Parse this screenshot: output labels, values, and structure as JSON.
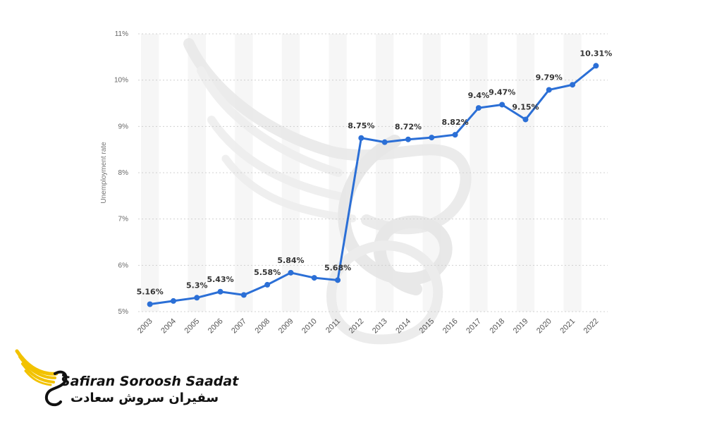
{
  "chart_data": {
    "type": "line",
    "ylabel": "Unemployment rate",
    "ylim": [
      5,
      11
    ],
    "yticks": [
      "5%",
      "6%",
      "7%",
      "8%",
      "9%",
      "10%",
      "11%"
    ],
    "grid": true,
    "categories": [
      "2003",
      "2004",
      "2005",
      "2006",
      "2007",
      "2008",
      "2009",
      "2010",
      "2011",
      "2012",
      "2013",
      "2014",
      "2015",
      "2016",
      "2017",
      "2018",
      "2019",
      "2020",
      "2021",
      "2022"
    ],
    "series": [
      {
        "values": [
          5.16,
          5.23,
          5.3,
          5.43,
          5.36,
          5.58,
          5.84,
          5.73,
          5.68,
          8.75,
          8.66,
          8.72,
          8.76,
          8.82,
          9.4,
          9.47,
          9.15,
          9.79,
          9.9,
          10.31
        ],
        "color": "#2b6fd6"
      }
    ],
    "data_labels": [
      {
        "index": 0,
        "text": "5.16%"
      },
      {
        "index": 2,
        "text": "5.3%"
      },
      {
        "index": 3,
        "text": "5.43%"
      },
      {
        "index": 5,
        "text": "5.58%"
      },
      {
        "index": 6,
        "text": "5.84%"
      },
      {
        "index": 8,
        "text": "5.68%"
      },
      {
        "index": 9,
        "text": "8.75%"
      },
      {
        "index": 11,
        "text": "8.72%"
      },
      {
        "index": 13,
        "text": "8.82%"
      },
      {
        "index": 14,
        "text": "9.4%"
      },
      {
        "index": 15,
        "text": "9.47%"
      },
      {
        "index": 16,
        "text": "9.15%"
      },
      {
        "index": 17,
        "text": "9.79%"
      },
      {
        "index": 19,
        "text": "10.31%"
      }
    ]
  },
  "logo": {
    "name": "Safiran Soroosh Saadat",
    "name_fa": "سفیران سروش سعادت",
    "colors": {
      "accent": "#f2c200",
      "dark": "#111111"
    }
  }
}
